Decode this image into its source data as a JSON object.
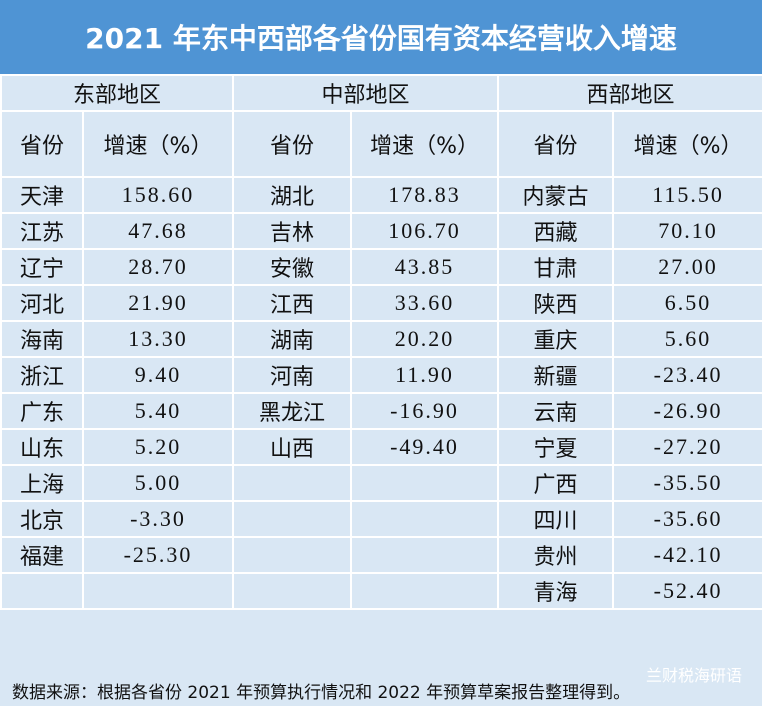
{
  "header": {
    "title": "2021 年东中西部各省份国有资本经营收入增速"
  },
  "table": {
    "regions": [
      {
        "name": "东部地区",
        "columns": [
          "省份",
          "增速（%）"
        ],
        "rows": [
          [
            "天津",
            "158.60"
          ],
          [
            "江苏",
            "47.68"
          ],
          [
            "辽宁",
            "28.70"
          ],
          [
            "河北",
            "21.90"
          ],
          [
            "海南",
            "13.30"
          ],
          [
            "浙江",
            "9.40"
          ],
          [
            "广东",
            "5.40"
          ],
          [
            "山东",
            "5.20"
          ],
          [
            "上海",
            "5.00"
          ],
          [
            "北京",
            "-3.30"
          ],
          [
            "福建",
            "-25.30"
          ]
        ]
      },
      {
        "name": "中部地区",
        "columns": [
          "省份",
          "增速（%）"
        ],
        "rows": [
          [
            "湖北",
            "178.83"
          ],
          [
            "吉林",
            "106.70"
          ],
          [
            "安徽",
            "43.85"
          ],
          [
            "江西",
            "33.60"
          ],
          [
            "湖南",
            "20.20"
          ],
          [
            "河南",
            "11.90"
          ],
          [
            "黑龙江",
            "-16.90"
          ],
          [
            "山西",
            "-49.40"
          ]
        ]
      },
      {
        "name": "西部地区",
        "columns": [
          "省份",
          "增速（%）"
        ],
        "rows": [
          [
            "内蒙古",
            "115.50"
          ],
          [
            "西藏",
            "70.10"
          ],
          [
            "甘肃",
            "27.00"
          ],
          [
            "陕西",
            "6.50"
          ],
          [
            "重庆",
            "5.60"
          ],
          [
            "新疆",
            "-23.40"
          ],
          [
            "云南",
            "-26.90"
          ],
          [
            "宁夏",
            "-27.20"
          ],
          [
            "广西",
            "-35.50"
          ],
          [
            "四川",
            "-35.60"
          ],
          [
            "贵州",
            "-42.10"
          ],
          [
            "青海",
            "-52.40"
          ]
        ]
      }
    ]
  },
  "footer": {
    "watermark": "兰财税海研语",
    "source": "数据来源：根据各省份 2021 年预算执行情况和 2022 年预算草案报告整理得到。"
  }
}
